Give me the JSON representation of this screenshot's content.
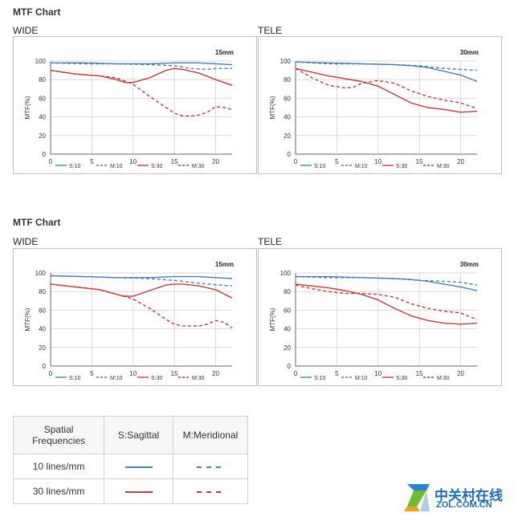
{
  "sections": [
    {
      "title": "MTF Chart"
    },
    {
      "title": "MTF Chart"
    }
  ],
  "legend_table": {
    "header": {
      "col1": "Spatial\nFrequencies",
      "col2": "S:Sagittal",
      "col3": "M:Meridional"
    },
    "rows": [
      {
        "label": "10 lines/mm",
        "color": "#4a7fb0"
      },
      {
        "label": "30 lines/mm",
        "color": "#c03b3b"
      }
    ]
  },
  "watermark": {
    "cn": "中关村在线",
    "en": "ZOL.COM.CN"
  },
  "colors": {
    "s10": "#4a7fb0",
    "m10": "#4a7fb0",
    "s30": "#c03b3b",
    "m30": "#c03b3b",
    "grid": "#d9d9d9",
    "axis": "#666666"
  },
  "chart_data": [
    {
      "type": "line",
      "panel": "WIDE",
      "focal": "15mm",
      "ylabel": "MTF(%)",
      "xlim": [
        0,
        22
      ],
      "ylim": [
        0,
        100
      ],
      "xticks": [
        0,
        5,
        10,
        15,
        20
      ],
      "yticks": [
        0,
        20,
        40,
        60,
        80,
        100
      ],
      "grid": true,
      "legend": "bottom",
      "series": [
        {
          "name": "S:10",
          "style": "solid",
          "x": [
            0,
            4,
            8,
            12,
            15,
            18,
            20,
            22
          ],
          "y": [
            98,
            98,
            97,
            97,
            98,
            98,
            97,
            96
          ]
        },
        {
          "name": "M:10",
          "style": "dashed",
          "x": [
            0,
            4,
            8,
            12,
            15,
            17,
            19,
            20,
            22
          ],
          "y": [
            98,
            97,
            97,
            96,
            95,
            92,
            91,
            92,
            92
          ]
        },
        {
          "name": "S:30",
          "style": "solid",
          "x": [
            0,
            3,
            6,
            8,
            9,
            10,
            12,
            14,
            15,
            16,
            18,
            20,
            22
          ],
          "y": [
            90,
            86,
            84,
            80,
            77,
            77,
            82,
            90,
            92,
            91,
            87,
            80,
            74
          ]
        },
        {
          "name": "M:30",
          "style": "dashed",
          "x": [
            0,
            3,
            6,
            8,
            10,
            12,
            14,
            15,
            16,
            17,
            18,
            19,
            20,
            21,
            22
          ],
          "y": [
            90,
            86,
            84,
            82,
            75,
            62,
            50,
            44,
            41,
            41,
            42,
            45,
            51,
            50,
            48
          ]
        }
      ]
    },
    {
      "type": "line",
      "panel": "TELE",
      "focal": "30mm",
      "ylabel": "MTF(%)",
      "xlim": [
        0,
        22
      ],
      "ylim": [
        0,
        100
      ],
      "xticks": [
        0,
        5,
        10,
        15,
        20
      ],
      "yticks": [
        0,
        20,
        40,
        60,
        80,
        100
      ],
      "grid": true,
      "legend": "bottom",
      "series": [
        {
          "name": "S:10",
          "style": "solid",
          "x": [
            0,
            4,
            8,
            12,
            14,
            16,
            18,
            20,
            22
          ],
          "y": [
            99,
            98,
            97,
            96,
            95,
            93,
            89,
            85,
            78
          ]
        },
        {
          "name": "M:10",
          "style": "dashed",
          "x": [
            0,
            4,
            8,
            12,
            15,
            18,
            20,
            22
          ],
          "y": [
            99,
            97,
            97,
            96,
            95,
            92,
            91,
            90
          ]
        },
        {
          "name": "S:30",
          "style": "solid",
          "x": [
            0,
            2,
            4,
            6,
            8,
            10,
            12,
            14,
            16,
            18,
            20,
            22
          ],
          "y": [
            92,
            88,
            84,
            81,
            78,
            73,
            64,
            55,
            50,
            48,
            45,
            46
          ]
        },
        {
          "name": "M:30",
          "style": "dashed",
          "x": [
            0,
            2,
            4,
            6,
            7,
            8,
            10,
            12,
            14,
            16,
            18,
            20,
            22
          ],
          "y": [
            92,
            82,
            74,
            71,
            72,
            76,
            79,
            76,
            68,
            62,
            58,
            55,
            49
          ]
        }
      ]
    },
    {
      "type": "line",
      "panel": "WIDE",
      "focal": "15mm",
      "ylabel": "MTF(%)",
      "xlim": [
        0,
        22
      ],
      "ylim": [
        0,
        100
      ],
      "xticks": [
        0,
        5,
        10,
        15,
        20
      ],
      "yticks": [
        0,
        20,
        40,
        60,
        80,
        100
      ],
      "grid": true,
      "legend": "bottom",
      "series": [
        {
          "name": "S:10",
          "style": "solid",
          "x": [
            0,
            4,
            8,
            12,
            15,
            18,
            20,
            22
          ],
          "y": [
            97,
            96,
            95,
            95,
            96,
            96,
            95,
            94
          ]
        },
        {
          "name": "M:10",
          "style": "dashed",
          "x": [
            0,
            4,
            8,
            12,
            15,
            17,
            19,
            22
          ],
          "y": [
            97,
            96,
            95,
            94,
            92,
            90,
            88,
            86
          ]
        },
        {
          "name": "S:30",
          "style": "solid",
          "x": [
            0,
            3,
            6,
            8,
            9,
            10,
            12,
            14,
            15,
            16,
            18,
            20,
            22
          ],
          "y": [
            88,
            85,
            82,
            77,
            75,
            75,
            81,
            87,
            88,
            88,
            86,
            82,
            73
          ]
        },
        {
          "name": "M:30",
          "style": "dashed",
          "x": [
            0,
            3,
            6,
            8,
            10,
            12,
            14,
            15,
            16,
            17,
            18,
            19,
            20,
            21,
            22
          ],
          "y": [
            88,
            85,
            82,
            77,
            72,
            62,
            50,
            45,
            43,
            43,
            43,
            45,
            49,
            47,
            41
          ]
        }
      ]
    },
    {
      "type": "line",
      "panel": "TELE",
      "focal": "30mm",
      "ylabel": "MTF(%)",
      "xlim": [
        0,
        22
      ],
      "ylim": [
        0,
        100
      ],
      "xticks": [
        0,
        5,
        10,
        15,
        20
      ],
      "yticks": [
        0,
        20,
        40,
        60,
        80,
        100
      ],
      "grid": true,
      "legend": "bottom",
      "series": [
        {
          "name": "S:10",
          "style": "solid",
          "x": [
            0,
            4,
            8,
            12,
            14,
            16,
            18,
            20,
            22
          ],
          "y": [
            96,
            96,
            95,
            94,
            93,
            91,
            88,
            85,
            81
          ]
        },
        {
          "name": "M:10",
          "style": "dashed",
          "x": [
            0,
            4,
            8,
            12,
            15,
            18,
            20,
            22
          ],
          "y": [
            96,
            95,
            95,
            94,
            92,
            91,
            90,
            87
          ]
        },
        {
          "name": "S:30",
          "style": "solid",
          "x": [
            0,
            2,
            4,
            6,
            8,
            10,
            12,
            14,
            16,
            18,
            20,
            22
          ],
          "y": [
            88,
            86,
            84,
            81,
            77,
            71,
            62,
            54,
            49,
            46,
            45,
            46
          ]
        },
        {
          "name": "M:30",
          "style": "dashed",
          "x": [
            0,
            2,
            4,
            6,
            8,
            10,
            12,
            14,
            16,
            18,
            20,
            22
          ],
          "y": [
            87,
            83,
            80,
            78,
            78,
            77,
            74,
            67,
            62,
            59,
            57,
            50
          ]
        }
      ]
    }
  ]
}
